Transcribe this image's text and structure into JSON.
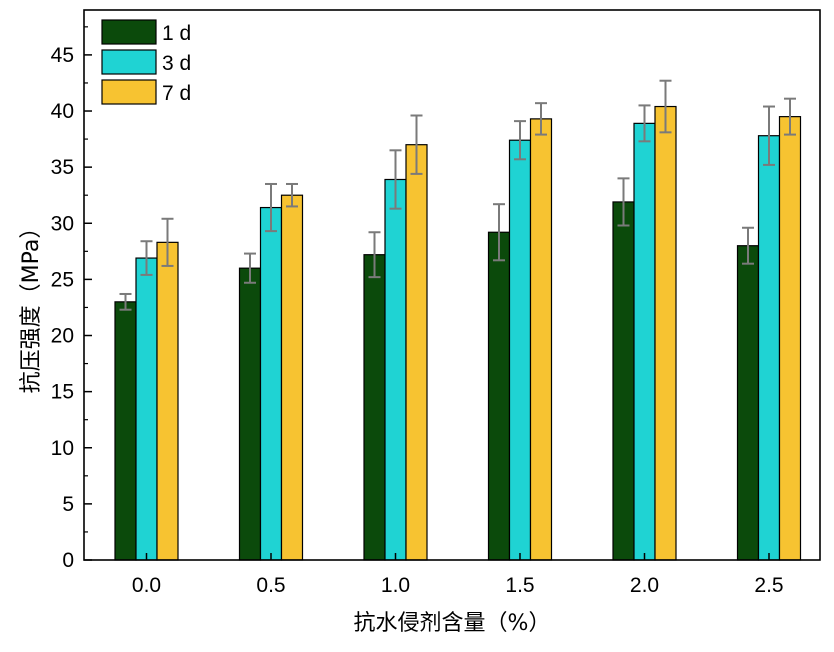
{
  "chart_data": {
    "type": "bar",
    "xlabel": "抗水侵剂含量（%）",
    "ylabel": "抗压强度（MPa）",
    "categories": [
      "0.0",
      "0.5",
      "1.0",
      "1.5",
      "2.0",
      "2.5"
    ],
    "ylim": [
      0,
      49
    ],
    "yticks": [
      0,
      5,
      10,
      15,
      20,
      25,
      30,
      35,
      40,
      45
    ],
    "grid": false,
    "legend_position": "top-left",
    "series": [
      {
        "name": "1 d",
        "color": "#0b4a0b",
        "values": [
          23.0,
          26.0,
          27.2,
          29.2,
          31.9,
          28.0
        ],
        "errors": [
          0.7,
          1.3,
          2.0,
          2.5,
          2.1,
          1.6
        ]
      },
      {
        "name": "3 d",
        "color": "#1fd3d3",
        "values": [
          26.9,
          31.4,
          33.9,
          37.4,
          38.9,
          37.8
        ],
        "errors": [
          1.5,
          2.1,
          2.6,
          1.7,
          1.6,
          2.6
        ]
      },
      {
        "name": "7 d",
        "color": "#f7c331",
        "values": [
          28.3,
          32.5,
          37.0,
          39.3,
          40.4,
          39.5
        ],
        "errors": [
          2.1,
          1.0,
          2.6,
          1.4,
          2.3,
          1.6
        ]
      }
    ]
  }
}
